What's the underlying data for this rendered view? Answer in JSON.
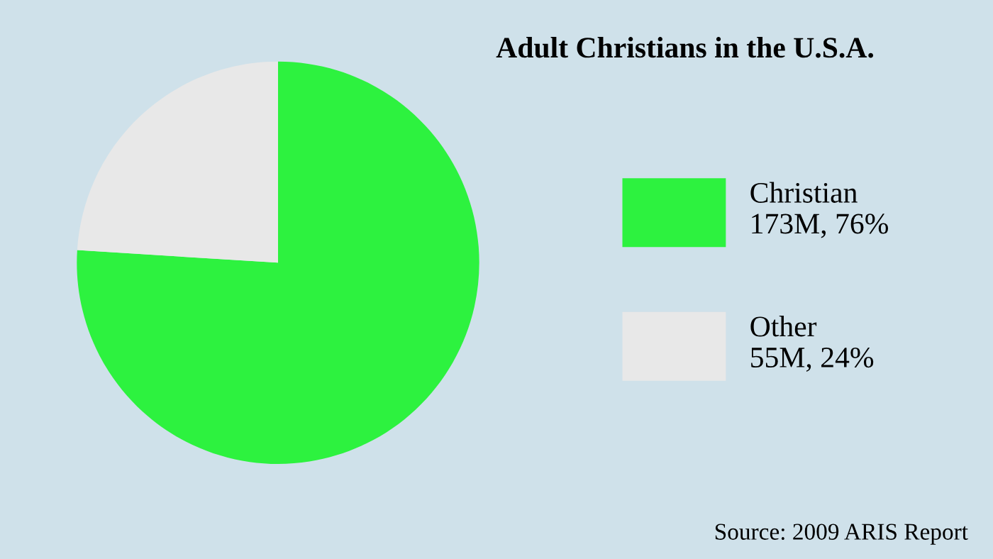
{
  "chart_data": {
    "type": "pie",
    "title": "Adult Christians in the U.S.A.",
    "categories": [
      "Christian",
      "Other"
    ],
    "values": [
      76,
      24
    ],
    "value_labels": [
      "173M, 76%",
      "55M, 24%"
    ],
    "colors": [
      "#2df23f",
      "#e8e8e8"
    ],
    "legend": "right",
    "annotations": [
      "Source: 2009 ARIS Report"
    ]
  }
}
